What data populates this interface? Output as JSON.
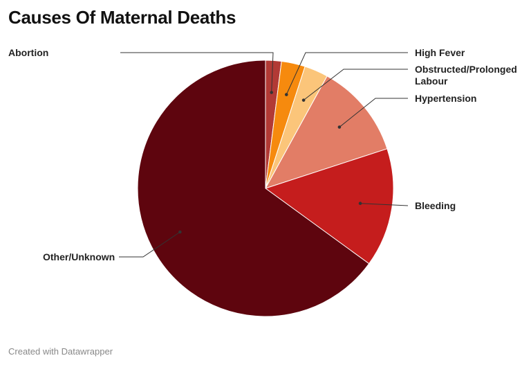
{
  "title": "Causes Of Maternal Deaths",
  "footer": "Created with Datawrapper",
  "chart_data": {
    "type": "pie",
    "title": "Causes Of Maternal Deaths",
    "start_angle_deg": 0,
    "direction": "clockwise",
    "slices": [
      {
        "label": [
          "Abortion"
        ],
        "value": 2,
        "color": "#b23a35"
      },
      {
        "label": [
          "High Fever"
        ],
        "value": 3,
        "color": "#f68a0e"
      },
      {
        "label": [
          "Obstructed/Prolonged",
          "Labour"
        ],
        "value": 3,
        "color": "#fbc57a"
      },
      {
        "label": [
          "Hypertension"
        ],
        "value": 12,
        "color": "#e27d66"
      },
      {
        "label": [
          "Bleeding"
        ],
        "value": 15,
        "color": "#c51d1d"
      },
      {
        "label": [
          "Other/Unknown"
        ],
        "value": 65,
        "color": "#5e050e"
      }
    ]
  }
}
